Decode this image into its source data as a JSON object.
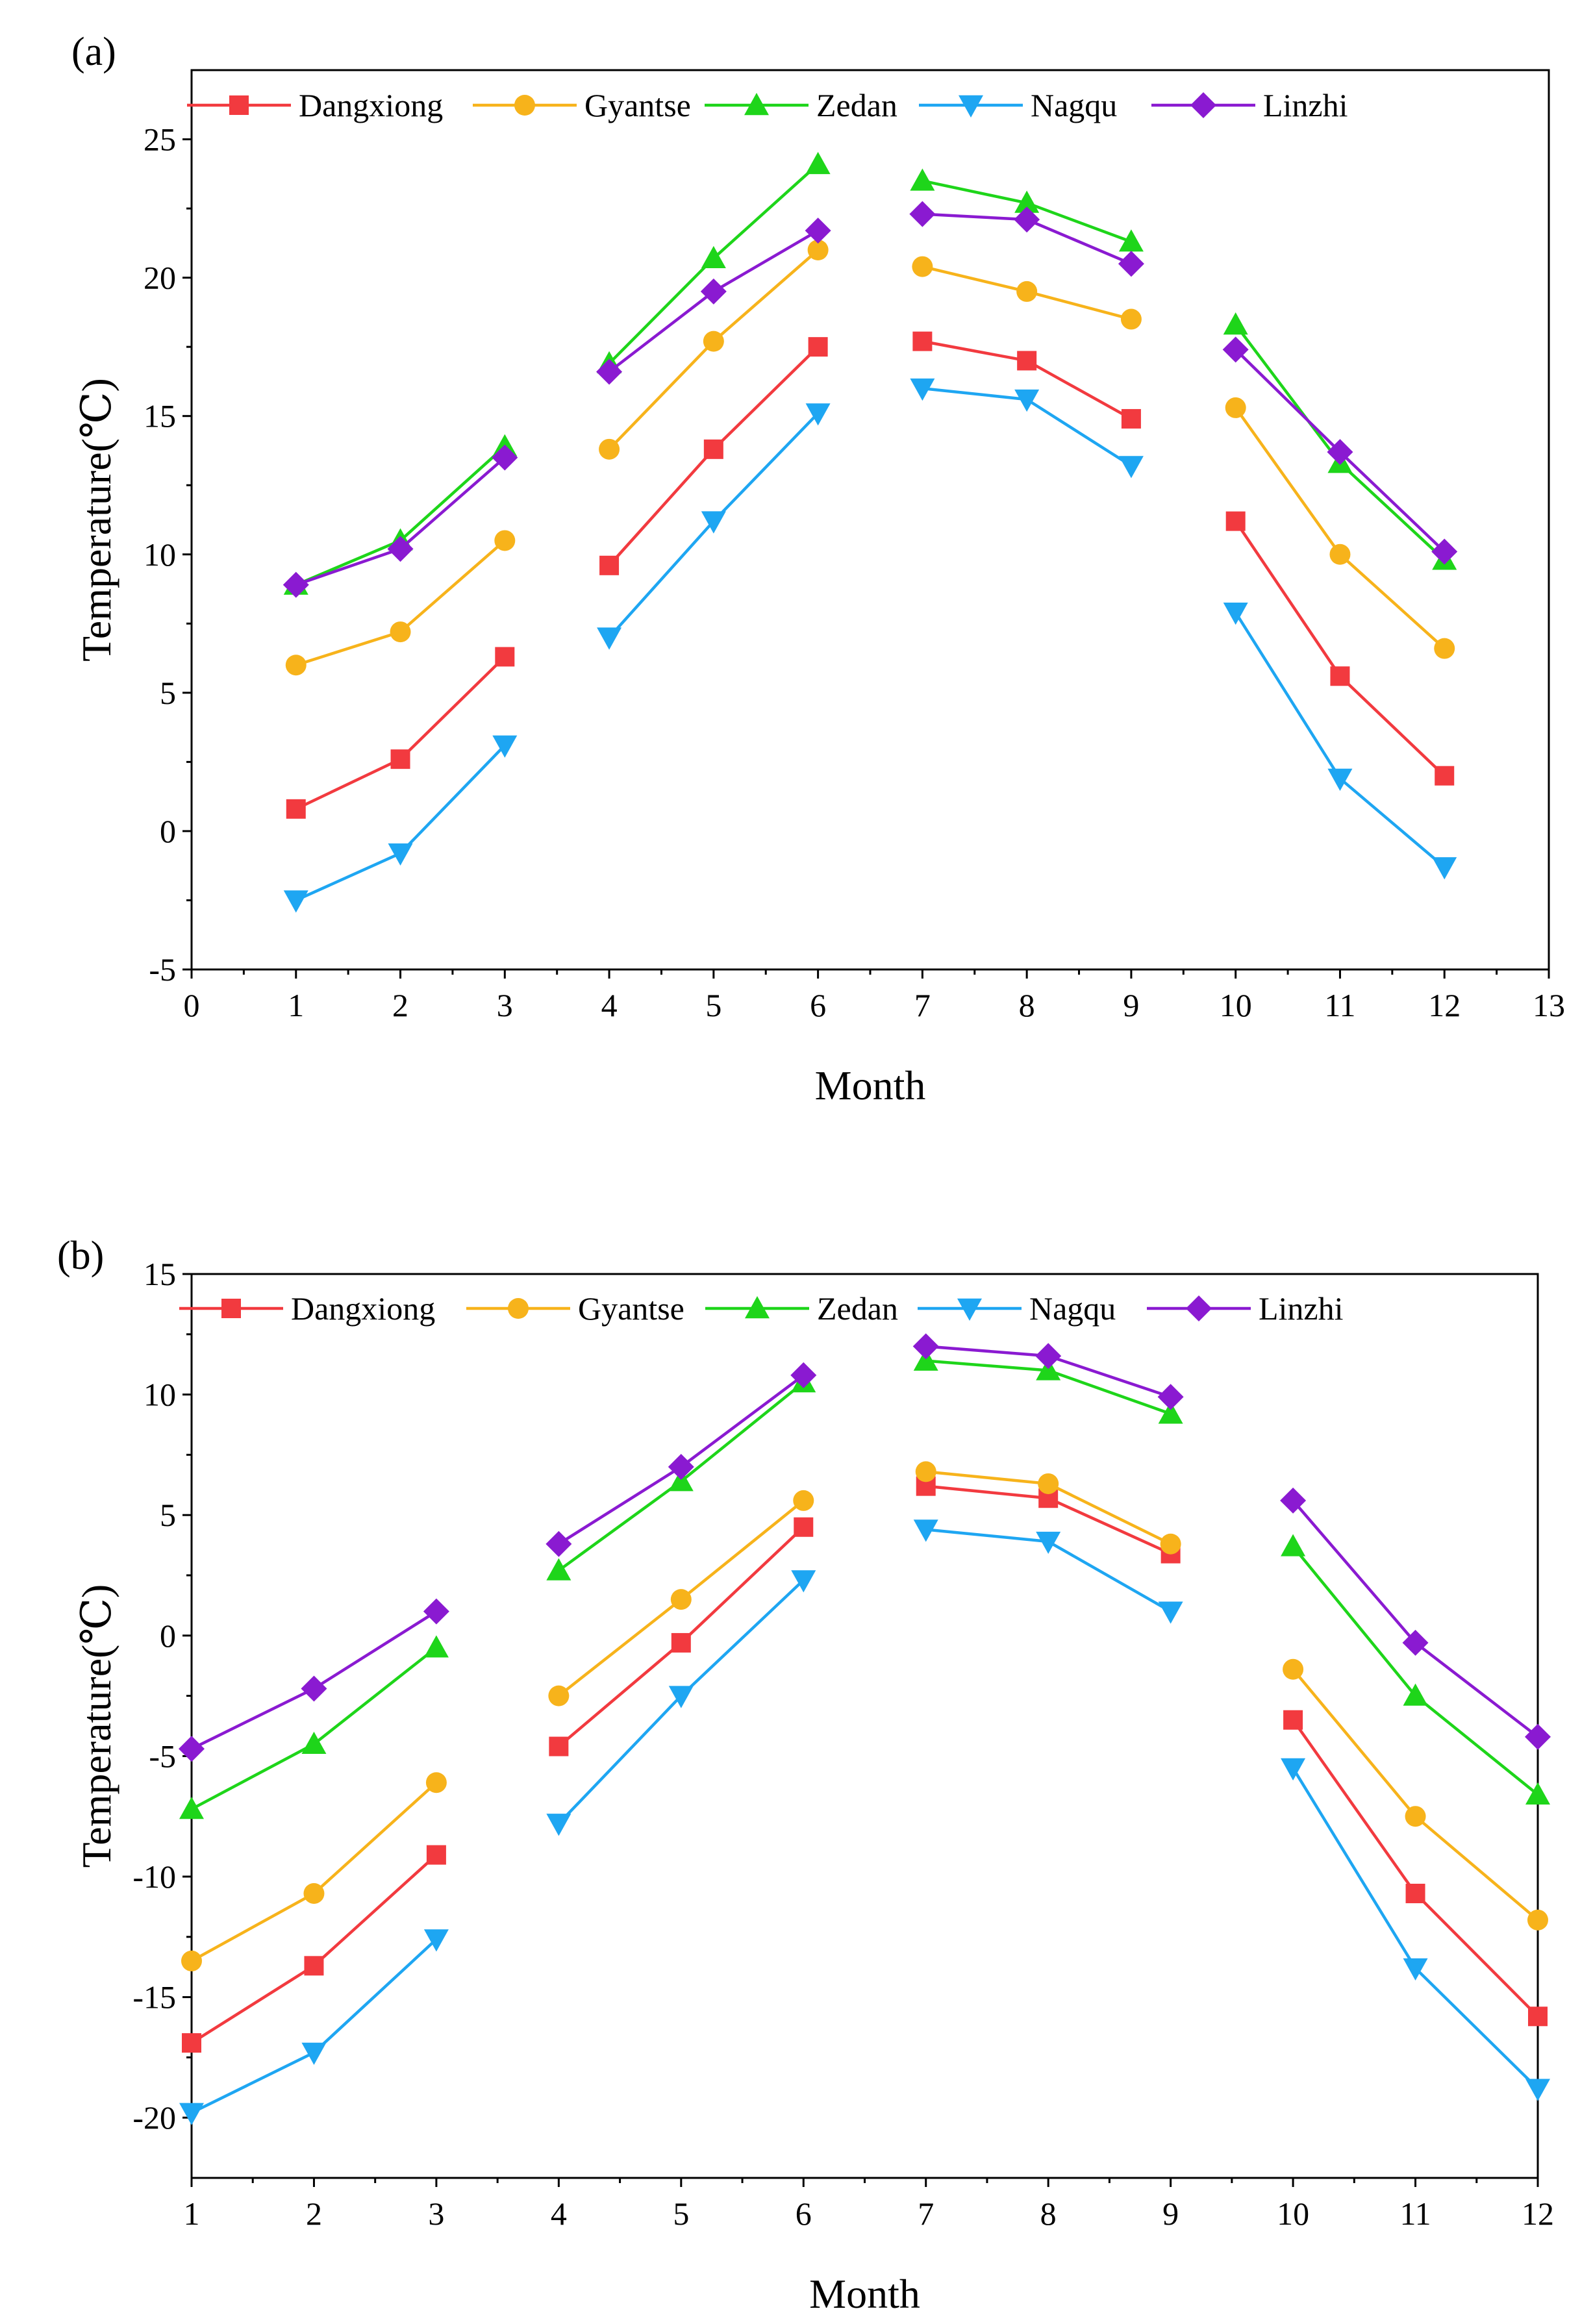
{
  "colors": {
    "Dangxiong": "#f23a3f",
    "Gyantse": "#f7b31b",
    "Zedan": "#1ed51a",
    "Nagqu": "#1ea6f2",
    "Linzhi": "#8a1ad1"
  },
  "markers": {
    "Dangxiong": "square",
    "Gyantse": "circle",
    "Zedan": "triangle-up",
    "Nagqu": "triangle-down",
    "Linzhi": "diamond"
  },
  "chart_data": [
    {
      "panel": "(a)",
      "type": "line",
      "xlabel": "Month",
      "ylabel": "Temperature(℃)",
      "xlim": [
        0,
        13
      ],
      "ylim": [
        -5,
        27.5
      ],
      "xticks": [
        0,
        1,
        2,
        3,
        4,
        5,
        6,
        7,
        8,
        9,
        10,
        11,
        12,
        13
      ],
      "yticks": [
        -5,
        0,
        5,
        10,
        15,
        20,
        25
      ],
      "segments": [
        [
          1,
          2,
          3
        ],
        [
          4,
          5,
          6
        ],
        [
          7,
          8,
          9
        ],
        [
          10,
          11,
          12
        ]
      ],
      "legend_position": "top",
      "series": [
        {
          "name": "Dangxiong",
          "values": [
            0.8,
            2.6,
            6.3,
            9.6,
            13.8,
            17.5,
            17.7,
            17.0,
            14.9,
            11.2,
            5.6,
            2.0
          ]
        },
        {
          "name": "Gyantse",
          "values": [
            6.0,
            7.2,
            10.5,
            13.8,
            17.7,
            21.0,
            20.4,
            19.5,
            18.5,
            15.3,
            10.0,
            6.6
          ]
        },
        {
          "name": "Zedan",
          "values": [
            8.9,
            10.5,
            13.9,
            16.9,
            20.7,
            24.1,
            23.5,
            22.7,
            21.3,
            18.3,
            13.3,
            9.8
          ]
        },
        {
          "name": "Nagqu",
          "values": [
            -2.5,
            -0.8,
            3.1,
            7.0,
            11.2,
            15.1,
            16.0,
            15.6,
            13.2,
            7.9,
            1.9,
            -1.3
          ]
        },
        {
          "name": "Linzhi",
          "values": [
            8.9,
            10.2,
            13.5,
            16.6,
            19.5,
            21.7,
            22.3,
            22.1,
            20.5,
            17.4,
            13.7,
            10.1
          ]
        }
      ]
    },
    {
      "panel": "(b)",
      "type": "line",
      "xlabel": "Month",
      "ylabel": "Temperature(℃)",
      "xlim": [
        1,
        12
      ],
      "ylim": [
        -22.5,
        15
      ],
      "xticks": [
        1,
        2,
        3,
        4,
        5,
        6,
        7,
        8,
        9,
        10,
        11,
        12
      ],
      "yticks": [
        -20,
        -15,
        -10,
        -5,
        0,
        5,
        10,
        15
      ],
      "segments": [
        [
          1,
          2,
          3
        ],
        [
          4,
          5,
          6
        ],
        [
          7,
          8,
          9
        ],
        [
          10,
          11,
          12
        ]
      ],
      "legend_position": "top",
      "series": [
        {
          "name": "Dangxiong",
          "values": [
            -16.9,
            -13.7,
            -9.1,
            -4.6,
            -0.3,
            4.5,
            6.2,
            5.7,
            3.4,
            -3.5,
            -10.7,
            -15.8
          ]
        },
        {
          "name": "Gyantse",
          "values": [
            -13.5,
            -10.7,
            -6.1,
            -2.5,
            1.5,
            5.6,
            6.8,
            6.3,
            3.8,
            -1.4,
            -7.5,
            -11.8
          ]
        },
        {
          "name": "Zedan",
          "values": [
            -7.2,
            -4.5,
            -0.5,
            2.7,
            6.4,
            10.5,
            11.4,
            11.0,
            9.2,
            3.7,
            -2.5,
            -6.6
          ]
        },
        {
          "name": "Nagqu",
          "values": [
            -19.8,
            -17.3,
            -12.6,
            -7.8,
            -2.5,
            2.3,
            4.4,
            3.9,
            1.0,
            -5.5,
            -13.8,
            -18.8
          ]
        },
        {
          "name": "Linzhi",
          "values": [
            -4.7,
            -2.2,
            1.0,
            3.8,
            7.0,
            10.8,
            12.0,
            11.6,
            9.9,
            5.6,
            -0.3,
            -4.2
          ]
        }
      ]
    }
  ]
}
